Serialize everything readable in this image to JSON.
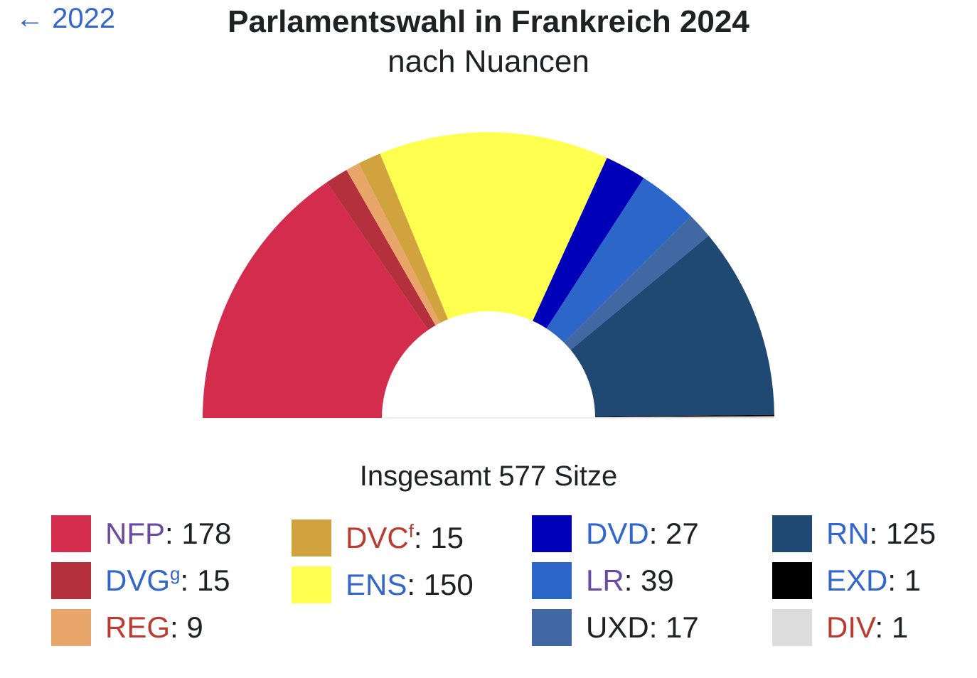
{
  "nav": {
    "back_label": "← 2022"
  },
  "header": {
    "title": "Parlamentswahl in Frankreich 2024",
    "subtitle": "nach Nuancen"
  },
  "chart_data": {
    "type": "pie",
    "variant": "parliament-hemicycle",
    "title": "Parlamentswahl in Frankreich 2024",
    "subtitle": "nach Nuancen",
    "total_label": "Insgesamt 577 Sitze",
    "total": 577,
    "categories": [
      "NFP",
      "DVG",
      "REG",
      "DVC",
      "ENS",
      "DVD",
      "LR",
      "UXD",
      "RN",
      "EXD",
      "DIV"
    ],
    "values": [
      178,
      15,
      9,
      15,
      150,
      27,
      39,
      17,
      125,
      1,
      1
    ],
    "colors": [
      "#d42c4c",
      "#b3303c",
      "#e8a66a",
      "#d1a33f",
      "#ffff4f",
      "#0000b8",
      "#2c66c8",
      "#4268a3",
      "#1f4872",
      "#000000",
      "#dcdcdc"
    ],
    "legend": [
      {
        "label": "NFP",
        "sup": "",
        "value": "178",
        "color": "#d42c4c",
        "label_color": "#6b4ba1"
      },
      {
        "label": "DVG",
        "sup": "g",
        "value": "15",
        "color": "#b3303c",
        "label_color": "#3366cc"
      },
      {
        "label": "REG",
        "sup": "",
        "value": "9",
        "color": "#e8a66a",
        "label_color": "#ba3b2f"
      },
      {
        "label": "DVC",
        "sup": "f",
        "value": "15",
        "color": "#d1a33f",
        "label_color": "#ba3b2f"
      },
      {
        "label": "ENS",
        "sup": "",
        "value": "150",
        "color": "#ffff4f",
        "label_color": "#3366cc"
      },
      {
        "label": "DVD",
        "sup": "",
        "value": "27",
        "color": "#0000b8",
        "label_color": "#3366cc"
      },
      {
        "label": "LR",
        "sup": "",
        "value": "39",
        "color": "#2c66c8",
        "label_color": "#6b4ba1"
      },
      {
        "label": "UXD",
        "sup": "",
        "value": "17",
        "color": "#4268a3",
        "label_color": "#202122"
      },
      {
        "label": "RN",
        "sup": "",
        "value": "125",
        "color": "#1f4872",
        "label_color": "#3366cc"
      },
      {
        "label": "EXD",
        "sup": "",
        "value": "1",
        "color": "#000000",
        "label_color": "#3366cc"
      },
      {
        "label": "DIV",
        "sup": "",
        "value": "1",
        "color": "#dcdcdc",
        "label_color": "#ba3b2f"
      }
    ]
  }
}
